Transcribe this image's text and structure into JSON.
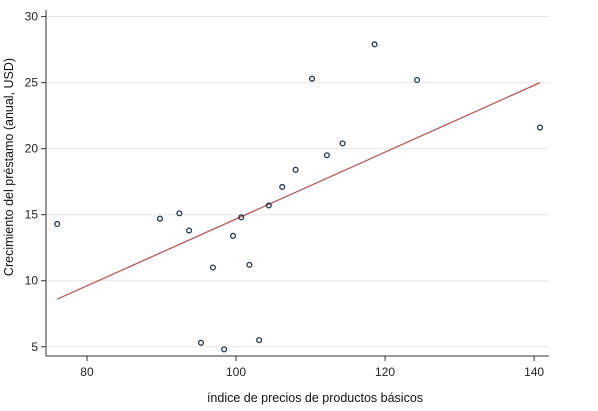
{
  "chart_data": {
    "type": "scatter",
    "xlabel": "índice de precios de productos básicos",
    "ylabel": "Crecimiento del préstamo (anual, USD)",
    "xlim": [
      74.5,
      142
    ],
    "ylim": [
      4.3,
      30.5
    ],
    "x_ticks": [
      80,
      100,
      120,
      140
    ],
    "y_ticks": [
      5,
      10,
      15,
      20,
      25,
      30
    ],
    "grid": "horizontal",
    "legend": "none",
    "colors": {
      "marker": "#1f3550",
      "fit_line": "#b5585a",
      "grid": "#e6e6e6",
      "axis": "#333333"
    },
    "points": [
      {
        "x": 76.0,
        "y": 14.3
      },
      {
        "x": 89.8,
        "y": 14.7
      },
      {
        "x": 92.4,
        "y": 15.1
      },
      {
        "x": 93.7,
        "y": 13.8
      },
      {
        "x": 95.3,
        "y": 5.3
      },
      {
        "x": 96.9,
        "y": 11.0
      },
      {
        "x": 98.4,
        "y": 4.8
      },
      {
        "x": 99.6,
        "y": 13.4
      },
      {
        "x": 100.7,
        "y": 14.8
      },
      {
        "x": 101.8,
        "y": 11.2
      },
      {
        "x": 103.1,
        "y": 5.5
      },
      {
        "x": 104.4,
        "y": 15.7
      },
      {
        "x": 106.2,
        "y": 17.1
      },
      {
        "x": 108.0,
        "y": 18.4
      },
      {
        "x": 110.2,
        "y": 25.3
      },
      {
        "x": 112.2,
        "y": 19.5
      },
      {
        "x": 114.3,
        "y": 20.4
      },
      {
        "x": 118.6,
        "y": 27.9
      },
      {
        "x": 124.3,
        "y": 25.2
      },
      {
        "x": 140.8,
        "y": 21.6
      }
    ],
    "fit_line": {
      "x": [
        76.0,
        140.8
      ],
      "y": [
        8.6,
        25.0
      ]
    }
  }
}
